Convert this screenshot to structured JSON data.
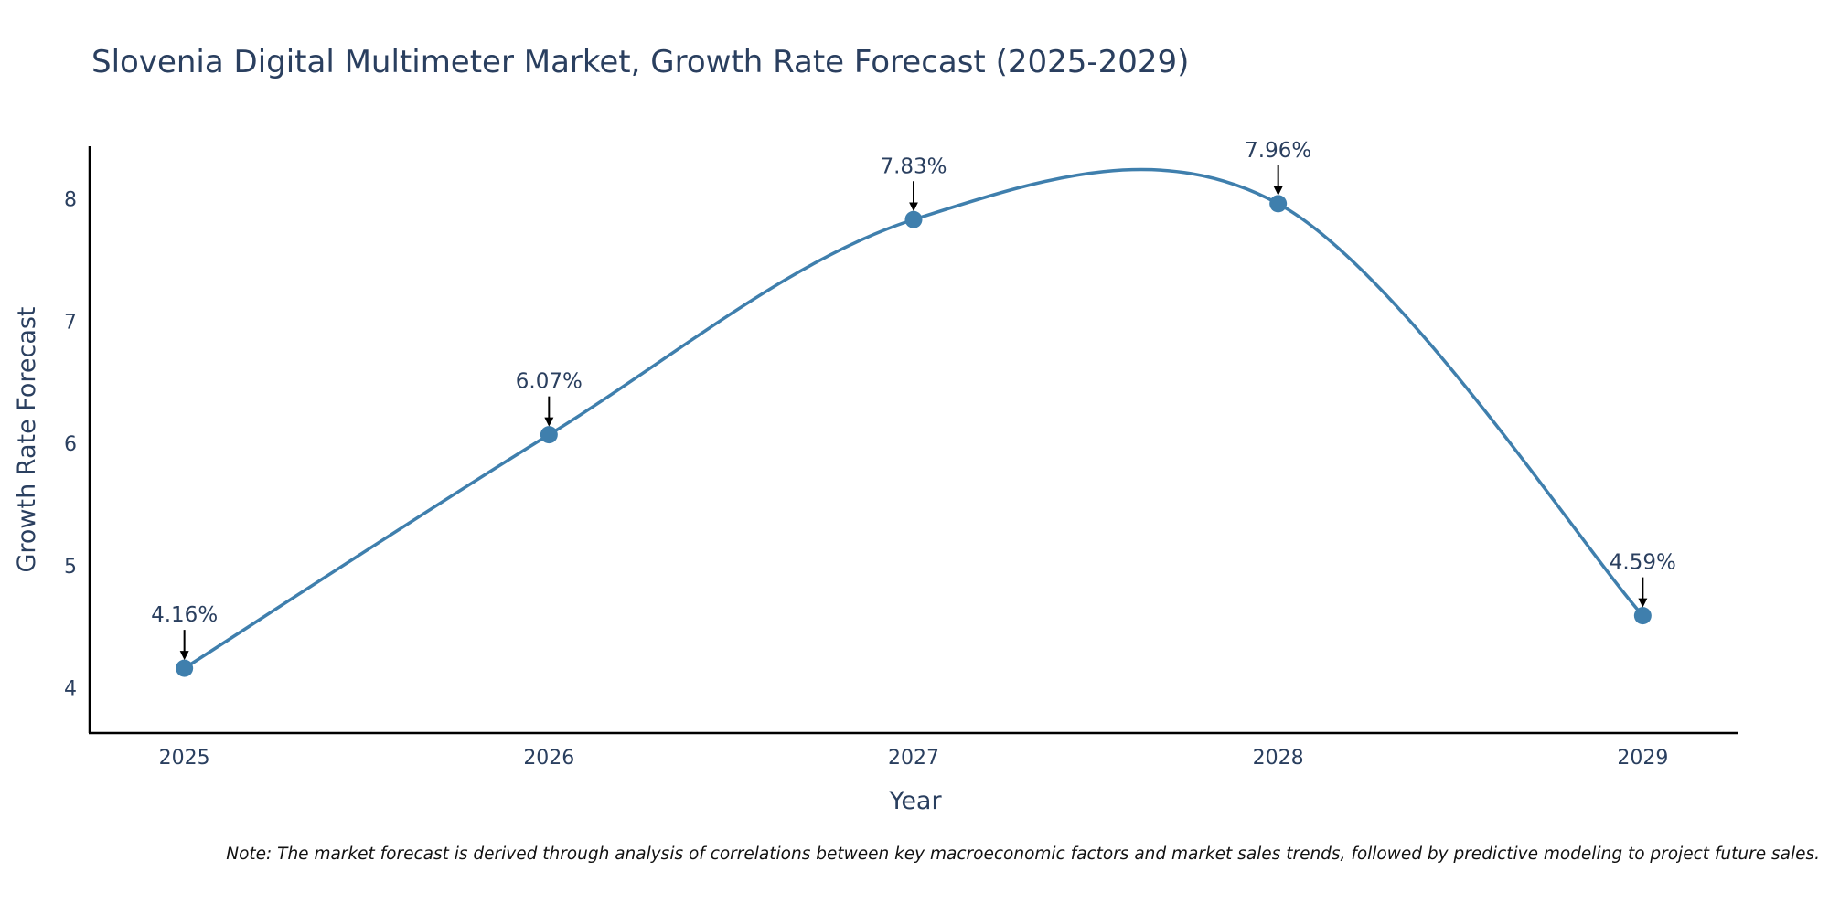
{
  "chart_data": {
    "type": "line",
    "title": "Slovenia Digital Multimeter Market, Growth Rate Forecast (2025-2029)",
    "xlabel": "Year",
    "ylabel": "Growth Rate Forecast",
    "categories": [
      "2025",
      "2026",
      "2027",
      "2028",
      "2029"
    ],
    "values": [
      4.16,
      6.07,
      7.83,
      7.96,
      4.59
    ],
    "data_labels": [
      "4.16%",
      "6.07%",
      "7.83%",
      "7.96%",
      "4.59%"
    ],
    "y_ticks": [
      4,
      5,
      6,
      7,
      8
    ],
    "ylim": [
      3.63,
      8.43
    ],
    "xlim": [
      2024.74,
      2029.26
    ],
    "grid": false,
    "smoothing": "spline",
    "line_color": "#3f7fad",
    "marker_color": "#3f7fad",
    "arrow_color": "#000000"
  },
  "footnote": "Note: The market forecast is derived through analysis of correlations between key macroeconomic factors and market sales trends, followed by predictive modeling to project future sales."
}
